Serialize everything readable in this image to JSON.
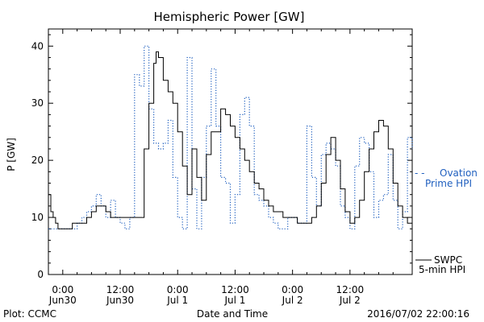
{
  "chart_data": {
    "type": "line",
    "title": "Hemispheric Power [GW]",
    "xlabel": "Date and Time",
    "ylabel": "P [GW]",
    "ylim": [
      0,
      43
    ],
    "xlim_hours": [
      -3,
      73
    ],
    "yticks": [
      0,
      10,
      20,
      30,
      40
    ],
    "xticks": [
      {
        "hour": 0,
        "time": "0:00",
        "date": "Jun30"
      },
      {
        "hour": 12,
        "time": "12:00",
        "date": "Jun30"
      },
      {
        "hour": 24,
        "time": "0:00",
        "date": "Jul 1"
      },
      {
        "hour": 36,
        "time": "12:00",
        "date": "Jul 1"
      },
      {
        "hour": 48,
        "time": "0:00",
        "date": "Jul 2"
      },
      {
        "hour": 60,
        "time": "12:00",
        "date": "Jul 2"
      }
    ],
    "series": [
      {
        "name": "5-min HPI",
        "source_label": "SWPC",
        "color": "#000000",
        "style": "solid",
        "x": [
          -3,
          -2.5,
          -2,
          -1.5,
          -1,
          0,
          1,
          2,
          3,
          4,
          5,
          6,
          7,
          8,
          9,
          10,
          11,
          12,
          13,
          14,
          15,
          16,
          17,
          18,
          19,
          19.5,
          20,
          21,
          22,
          23,
          24,
          25,
          26,
          27,
          28,
          29,
          30,
          31,
          32,
          33,
          33.5,
          34,
          35,
          36,
          37,
          38,
          39,
          40,
          41,
          42,
          43,
          44,
          45,
          46,
          47,
          48,
          49,
          50,
          51,
          52,
          53,
          54,
          55,
          56,
          57,
          58,
          59,
          60,
          61,
          62,
          63,
          64,
          65,
          66,
          67,
          68,
          69,
          70,
          71,
          72,
          73
        ],
        "y": [
          14,
          11,
          10,
          9,
          8,
          8,
          8,
          9,
          9,
          9,
          10,
          11,
          12,
          12,
          11,
          10,
          10,
          10,
          10,
          10,
          10,
          10,
          22,
          30,
          37,
          39,
          38,
          34,
          32,
          30,
          25,
          19,
          14,
          22,
          17,
          13,
          21,
          25,
          25,
          29,
          29,
          28,
          26,
          24,
          22,
          20,
          18,
          16,
          15,
          13,
          12,
          11,
          11,
          10,
          10,
          10,
          9,
          9,
          9,
          10,
          12,
          16,
          21,
          24,
          20,
          15,
          11,
          9,
          10,
          13,
          18,
          22,
          25,
          27,
          26,
          22,
          16,
          12,
          10,
          9,
          12
        ]
      },
      {
        "name": "Ovation Prime HPI",
        "color": "#1f5fbf",
        "style": "dotted",
        "x": [
          -3,
          -1,
          0,
          1,
          2,
          3,
          4,
          5,
          6,
          7,
          8,
          9,
          10,
          11,
          12,
          13,
          14,
          15,
          16,
          17,
          18,
          19,
          20,
          21,
          22,
          23,
          24,
          25,
          26,
          27,
          28,
          29,
          30,
          31,
          32,
          33,
          34,
          35,
          36,
          37,
          38,
          39,
          40,
          41,
          42,
          43,
          44,
          45,
          46,
          47,
          48,
          49,
          50,
          51,
          52,
          53,
          54,
          55,
          56,
          57,
          58,
          59,
          60,
          61,
          62,
          63,
          64,
          65,
          66,
          67,
          68,
          69,
          70,
          71,
          72,
          73
        ],
        "y": [
          8,
          8,
          8,
          8,
          8,
          9,
          10,
          11,
          12,
          14,
          12,
          10,
          13,
          10,
          9,
          8,
          10,
          35,
          33,
          40,
          29,
          23,
          22,
          23,
          27,
          17,
          10,
          8,
          38,
          15,
          8,
          17,
          26,
          36,
          26,
          17,
          16,
          9,
          14,
          28,
          31,
          26,
          14,
          13,
          12,
          10,
          9,
          8,
          8,
          10,
          10,
          9,
          9,
          26,
          17,
          12,
          21,
          23,
          22,
          19,
          12,
          10,
          8,
          19,
          24,
          23,
          18,
          10,
          13,
          14,
          21,
          13,
          8,
          11,
          24,
          22
        ]
      }
    ],
    "legend_location": "right",
    "legend_entries": [
      {
        "series": "Ovation Prime HPI",
        "marker": "- -",
        "line1": "Ovation",
        "line2": "Prime HPI"
      },
      {
        "series": "5-min HPI",
        "line1": "SWPC",
        "line2": "5-min HPI"
      }
    ]
  },
  "footer": {
    "left": "Plot: CCMC",
    "right": "2016/07/02 22:00:16"
  }
}
